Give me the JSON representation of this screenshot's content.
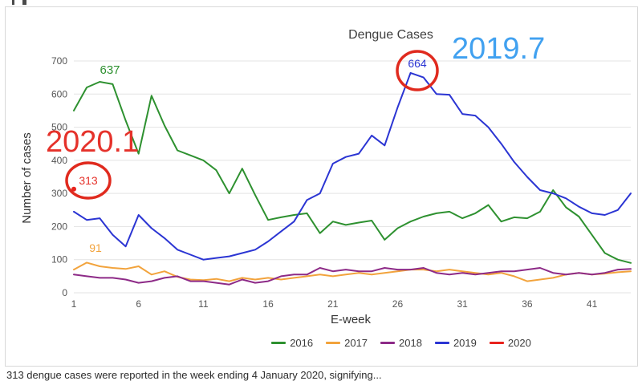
{
  "frame": {
    "caption": "313 dengue cases were reported in the week ending 4 January 2020, signifying..."
  },
  "annotations": {
    "peak_2019_week": "2019.7",
    "start_2020_week": "2020.1",
    "peak_2019_value": "664",
    "start_2020_value": "313",
    "peak_2016_value": "637",
    "peak_2017_value": "91"
  },
  "chart_data": {
    "type": "line",
    "title": "Dengue Cases",
    "xlabel": "E-week",
    "ylabel": "Number of cases",
    "x_ticks": [
      1,
      6,
      11,
      16,
      21,
      26,
      31,
      36,
      41
    ],
    "y_ticks": [
      0,
      100,
      200,
      300,
      400,
      500,
      600,
      700
    ],
    "x_range": [
      1,
      44
    ],
    "ylim": [
      0,
      700
    ],
    "grid": "horizontal",
    "legend_position": "bottom",
    "x": [
      1,
      2,
      3,
      4,
      5,
      6,
      7,
      8,
      9,
      10,
      11,
      12,
      13,
      14,
      15,
      16,
      17,
      18,
      19,
      20,
      21,
      22,
      23,
      24,
      25,
      26,
      27,
      28,
      29,
      30,
      31,
      32,
      33,
      34,
      35,
      36,
      37,
      38,
      39,
      40,
      41,
      42,
      43,
      44
    ],
    "series": [
      {
        "name": "2016",
        "color": "#2e9130",
        "values": [
          550,
          620,
          637,
          630,
          520,
          420,
          595,
          505,
          430,
          415,
          400,
          370,
          300,
          375,
          295,
          220,
          228,
          235,
          240,
          180,
          215,
          205,
          212,
          218,
          160,
          195,
          215,
          230,
          240,
          245,
          225,
          240,
          265,
          215,
          228,
          225,
          245,
          310,
          258,
          230,
          175,
          120,
          100,
          90
        ]
      },
      {
        "name": "2017",
        "color": "#f2a33c",
        "values": [
          70,
          91,
          80,
          75,
          72,
          80,
          55,
          65,
          48,
          40,
          38,
          42,
          35,
          45,
          40,
          45,
          40,
          45,
          50,
          55,
          50,
          55,
          60,
          55,
          60,
          65,
          70,
          70,
          65,
          70,
          65,
          60,
          55,
          60,
          50,
          35,
          40,
          45,
          55,
          60,
          55,
          58,
          62,
          65
        ]
      },
      {
        "name": "2018",
        "color": "#8d2a87",
        "values": [
          55,
          50,
          45,
          45,
          40,
          30,
          35,
          45,
          50,
          35,
          35,
          30,
          25,
          40,
          30,
          35,
          50,
          55,
          55,
          75,
          65,
          70,
          65,
          65,
          75,
          70,
          70,
          75,
          60,
          55,
          60,
          55,
          60,
          65,
          65,
          70,
          75,
          60,
          55,
          60,
          55,
          60,
          70,
          72
        ]
      },
      {
        "name": "2019",
        "color": "#2b35d3",
        "values": [
          245,
          220,
          225,
          175,
          140,
          235,
          195,
          165,
          130,
          115,
          100,
          105,
          110,
          120,
          130,
          155,
          185,
          215,
          280,
          300,
          390,
          410,
          420,
          475,
          445,
          560,
          664,
          650,
          600,
          598,
          540,
          535,
          500,
          450,
          395,
          350,
          310,
          300,
          285,
          260,
          240,
          235,
          250,
          300
        ]
      },
      {
        "name": "2020",
        "color": "#e8231d",
        "values": [
          313
        ]
      }
    ]
  }
}
